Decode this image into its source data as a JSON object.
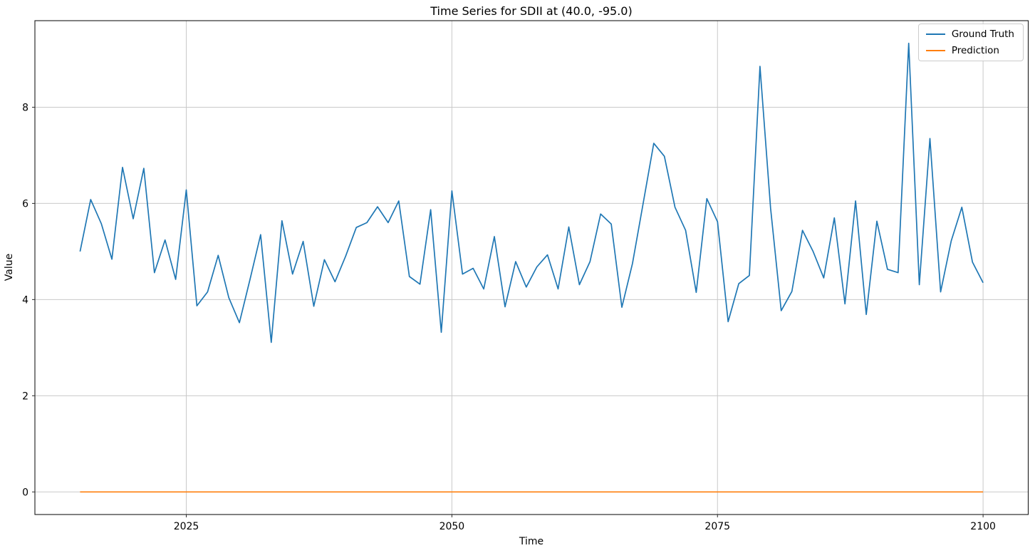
{
  "figure": {
    "background": "#ffffff"
  },
  "colors": {
    "ground_truth": "#1f77b4",
    "prediction": "#ff7f0e",
    "grid": "#c9c9c9",
    "spine": "#1a1a1a",
    "tick": "#2b2b2b"
  },
  "chart_data": {
    "type": "line",
    "title": "Time Series for SDII at (40.0, -95.0)",
    "xlabel": "Time",
    "ylabel": "Value",
    "xlim": [
      2010.75,
      2104.25
    ],
    "ylim": [
      -0.47,
      9.8
    ],
    "xticks": [
      2025,
      2050,
      2075,
      2100
    ],
    "yticks": [
      0,
      2,
      4,
      6,
      8
    ],
    "grid": true,
    "legend_position": "upper right",
    "x": [
      2015,
      2016,
      2017,
      2018,
      2019,
      2020,
      2021,
      2022,
      2023,
      2024,
      2025,
      2026,
      2027,
      2028,
      2029,
      2030,
      2031,
      2032,
      2033,
      2034,
      2035,
      2036,
      2037,
      2038,
      2039,
      2040,
      2041,
      2042,
      2043,
      2044,
      2045,
      2046,
      2047,
      2048,
      2049,
      2050,
      2051,
      2052,
      2053,
      2054,
      2055,
      2056,
      2057,
      2058,
      2059,
      2060,
      2061,
      2062,
      2063,
      2064,
      2065,
      2066,
      2067,
      2068,
      2069,
      2070,
      2071,
      2072,
      2073,
      2074,
      2075,
      2076,
      2077,
      2078,
      2079,
      2080,
      2081,
      2082,
      2083,
      2084,
      2085,
      2086,
      2087,
      2088,
      2089,
      2090,
      2091,
      2092,
      2093,
      2094,
      2095,
      2096,
      2097,
      2098,
      2099,
      2100
    ],
    "series": [
      {
        "name": "Ground Truth",
        "color": "#1f77b4",
        "values": [
          5.0,
          6.08,
          5.58,
          4.84,
          6.75,
          5.68,
          6.73,
          4.56,
          5.24,
          4.42,
          6.28,
          3.87,
          4.16,
          4.92,
          4.04,
          3.52,
          4.42,
          5.35,
          3.11,
          5.64,
          4.53,
          5.21,
          3.86,
          4.83,
          4.37,
          4.9,
          5.5,
          5.6,
          5.93,
          5.6,
          6.05,
          4.48,
          4.32,
          5.87,
          3.32,
          6.26,
          4.53,
          4.65,
          4.22,
          5.31,
          3.85,
          4.79,
          4.26,
          4.68,
          4.93,
          4.22,
          5.51,
          4.31,
          4.79,
          5.78,
          5.57,
          3.84,
          4.75,
          6.0,
          7.25,
          6.98,
          5.92,
          5.44,
          4.15,
          6.1,
          5.62,
          3.54,
          4.33,
          4.5,
          8.85,
          5.9,
          3.77,
          4.17,
          5.44,
          5.0,
          4.45,
          5.7,
          3.91,
          6.05,
          3.69,
          5.63,
          4.63,
          4.56,
          9.33,
          4.31,
          7.35,
          4.16,
          5.22,
          5.92,
          4.78,
          4.35
        ]
      },
      {
        "name": "Prediction",
        "color": "#ff7f0e",
        "values": [
          0,
          0,
          0,
          0,
          0,
          0,
          0,
          0,
          0,
          0,
          0,
          0,
          0,
          0,
          0,
          0,
          0,
          0,
          0,
          0,
          0,
          0,
          0,
          0,
          0,
          0,
          0,
          0,
          0,
          0,
          0,
          0,
          0,
          0,
          0,
          0,
          0,
          0,
          0,
          0,
          0,
          0,
          0,
          0,
          0,
          0,
          0,
          0,
          0,
          0,
          0,
          0,
          0,
          0,
          0,
          0,
          0,
          0,
          0,
          0,
          0,
          0,
          0,
          0,
          0,
          0,
          0,
          0,
          0,
          0,
          0,
          0,
          0,
          0,
          0,
          0,
          0,
          0,
          0,
          0,
          0,
          0,
          0,
          0,
          0,
          0
        ]
      }
    ]
  }
}
